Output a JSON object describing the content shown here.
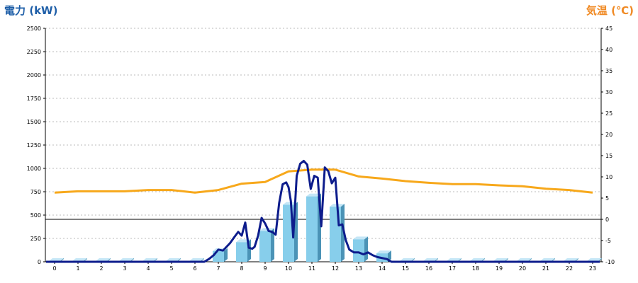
{
  "chart_data": {
    "type": "bar",
    "title": "",
    "ylabel_left": "電力 (kW)",
    "ylabel_right": "気温 (℃)",
    "xlabel": "",
    "colors": {
      "left_title": "#1f5fa8",
      "right_title": "#f08a24",
      "bar_front": "#87ceeb",
      "bar_side": "#4b93b6",
      "bar_top": "#c4e6f6",
      "power_line": "#0d1c8c",
      "temp_line": "#f7a81b",
      "grid": "#bbbbbb",
      "zero_line": "#000000"
    },
    "ylim_left": [
      0,
      2500
    ],
    "ylim_right": [
      -10,
      45
    ],
    "yticks_left": [
      0,
      250,
      500,
      750,
      1000,
      1250,
      1500,
      1750,
      2000,
      2250,
      2500
    ],
    "yticks_right": [
      -10,
      -5,
      0,
      5,
      10,
      15,
      20,
      25,
      30,
      35,
      40,
      45
    ],
    "categories": [
      "0",
      "1",
      "2",
      "3",
      "4",
      "5",
      "6",
      "7",
      "8",
      "9",
      "10",
      "11",
      "12",
      "13",
      "14",
      "15",
      "16",
      "17",
      "18",
      "19",
      "20",
      "21",
      "22",
      "23"
    ],
    "series": [
      {
        "kind": "bar",
        "axis": "left",
        "values": [
          0,
          0,
          0,
          0,
          0,
          0,
          0,
          115,
          210,
          330,
          610,
          700,
          590,
          240,
          90,
          0,
          0,
          0,
          0,
          0,
          0,
          0,
          0,
          0
        ]
      },
      {
        "kind": "line",
        "axis": "left",
        "x": [
          6.4,
          6.6,
          6.8,
          7.0,
          7.2,
          7.5,
          7.7,
          7.85,
          8.0,
          8.15,
          8.3,
          8.45,
          8.55,
          8.7,
          8.85,
          9.0,
          9.15,
          9.3,
          9.45,
          9.6,
          9.75,
          9.9,
          10.0,
          10.1,
          10.2,
          10.35,
          10.5,
          10.65,
          10.8,
          10.95,
          11.1,
          11.25,
          11.4,
          11.55,
          11.7,
          11.85,
          12.0,
          12.15,
          12.3,
          12.45,
          12.6,
          12.8,
          13.0,
          13.2,
          13.4,
          13.6,
          13.8,
          14.0,
          14.2,
          14.4,
          14.6
        ],
        "values": [
          0,
          30,
          70,
          130,
          120,
          200,
          270,
          320,
          280,
          420,
          150,
          140,
          160,
          280,
          470,
          410,
          330,
          320,
          290,
          630,
          830,
          850,
          800,
          650,
          260,
          920,
          1050,
          1080,
          1040,
          780,
          920,
          900,
          380,
          1010,
          970,
          840,
          900,
          390,
          400,
          230,
          130,
          100,
          100,
          80,
          100,
          70,
          50,
          40,
          30,
          0,
          0
        ]
      },
      {
        "kind": "line",
        "axis": "right",
        "values": [
          6.3,
          6.6,
          6.6,
          6.6,
          6.9,
          6.9,
          6.3,
          6.9,
          8.4,
          8.8,
          11.3,
          11.7,
          11.7,
          10.1,
          9.6,
          9.0,
          8.6,
          8.3,
          8.3,
          8.0,
          7.8,
          7.2,
          6.9,
          6.3
        ]
      }
    ]
  }
}
